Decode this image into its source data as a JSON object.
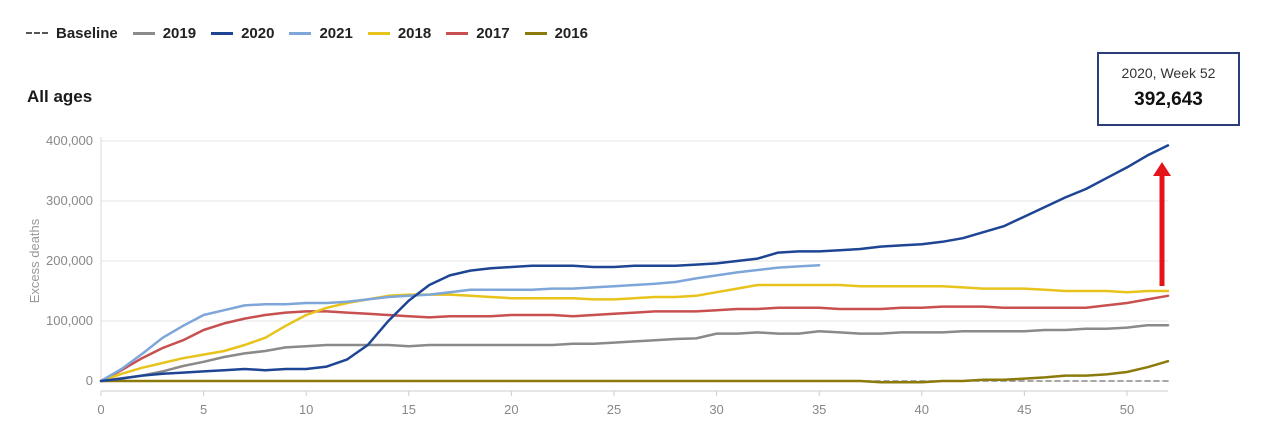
{
  "legend": [
    {
      "label": "Baseline",
      "color": "#555555",
      "dashed": true
    },
    {
      "label": "2019",
      "color": "#8a8a8a",
      "dashed": false
    },
    {
      "label": "2020",
      "color": "#1d4593",
      "dashed": false
    },
    {
      "label": "2021",
      "color": "#7ea6d8",
      "dashed": false
    },
    {
      "label": "2018",
      "color": "#e8c31c",
      "dashed": false
    },
    {
      "label": "2017",
      "color": "#c85050",
      "dashed": false
    },
    {
      "label": "2016",
      "color": "#8c7a0c",
      "dashed": false
    }
  ],
  "subtitle": "All ages",
  "tooltip": {
    "heading": "2020, Week 52",
    "value": "392,643"
  },
  "annotation_color": "#e3151a",
  "chart_data": {
    "type": "line",
    "ylabel": "Excess deaths",
    "xlabel": "",
    "xlim": [
      0,
      52
    ],
    "ylim": [
      0,
      400000
    ],
    "x_ticks": [
      0,
      5,
      10,
      15,
      20,
      25,
      30,
      35,
      40,
      45,
      50
    ],
    "y_ticks": [
      0,
      100000,
      200000,
      300000,
      400000
    ],
    "y_tick_labels": [
      "0",
      "100,000",
      "200,000",
      "300,000",
      "400,000"
    ],
    "grid": true,
    "legend_position": "top-left",
    "series": [
      {
        "name": "Baseline",
        "color": "#888888",
        "dashed": true,
        "x": [
          0,
          52
        ],
        "y": [
          0,
          0
        ]
      },
      {
        "name": "2016",
        "color": "#8c7a0c",
        "x": [
          0,
          5,
          10,
          15,
          20,
          25,
          30,
          35,
          37,
          38,
          39,
          40,
          41,
          42,
          43,
          44,
          45,
          46,
          47,
          48,
          49,
          50,
          51,
          52
        ],
        "y": [
          0,
          0,
          0,
          0,
          0,
          0,
          0,
          0,
          0,
          -2000,
          -2000,
          -2000,
          0,
          0,
          2000,
          2000,
          4000,
          6000,
          9000,
          9000,
          11000,
          15000,
          23000,
          33000
        ]
      },
      {
        "name": "2019",
        "color": "#8a8a8a",
        "x": [
          0,
          2,
          3,
          4,
          5,
          6,
          7,
          8,
          9,
          10,
          11,
          12,
          13,
          14,
          15,
          16,
          17,
          18,
          19,
          20,
          21,
          22,
          23,
          24,
          25,
          26,
          27,
          28,
          29,
          30,
          31,
          32,
          33,
          34,
          35,
          36,
          37,
          38,
          39,
          40,
          41,
          42,
          43,
          44,
          45,
          46,
          47,
          48,
          49,
          50,
          51,
          52
        ],
        "y": [
          0,
          9000,
          16000,
          25000,
          32000,
          40000,
          46000,
          50000,
          56000,
          58000,
          60000,
          60000,
          60000,
          60000,
          58000,
          60000,
          60000,
          60000,
          60000,
          60000,
          60000,
          60000,
          62000,
          62000,
          64000,
          66000,
          68000,
          70000,
          71000,
          79000,
          79000,
          81000,
          79000,
          79000,
          83000,
          81000,
          79000,
          79000,
          81000,
          81000,
          81000,
          83000,
          83000,
          83000,
          83000,
          85000,
          85000,
          87000,
          87000,
          89000,
          93000,
          93000
        ]
      },
      {
        "name": "2017",
        "color": "#c85050",
        "x": [
          0,
          1,
          2,
          3,
          4,
          5,
          6,
          7,
          8,
          9,
          10,
          11,
          12,
          13,
          14,
          15,
          16,
          17,
          18,
          19,
          20,
          21,
          22,
          23,
          24,
          25,
          26,
          27,
          28,
          29,
          30,
          31,
          32,
          33,
          34,
          35,
          36,
          37,
          38,
          39,
          40,
          41,
          42,
          43,
          44,
          45,
          46,
          47,
          48,
          49,
          50,
          51,
          52
        ],
        "y": [
          0,
          18000,
          38000,
          55000,
          68000,
          85000,
          96000,
          104000,
          110000,
          114000,
          116000,
          116000,
          114000,
          112000,
          110000,
          108000,
          106000,
          108000,
          108000,
          108000,
          110000,
          110000,
          110000,
          108000,
          110000,
          112000,
          114000,
          116000,
          116000,
          116000,
          118000,
          120000,
          120000,
          122000,
          122000,
          122000,
          120000,
          120000,
          120000,
          122000,
          122000,
          124000,
          124000,
          124000,
          122000,
          122000,
          122000,
          122000,
          122000,
          126000,
          130000,
          136000,
          142000
        ]
      },
      {
        "name": "2018",
        "color": "#e8c31c",
        "x": [
          0,
          1,
          2,
          3,
          4,
          5,
          6,
          7,
          8,
          9,
          10,
          11,
          12,
          13,
          14,
          15,
          16,
          17,
          18,
          19,
          20,
          21,
          22,
          23,
          24,
          25,
          26,
          27,
          28,
          29,
          30,
          31,
          32,
          33,
          34,
          35,
          36,
          37,
          38,
          39,
          40,
          41,
          42,
          43,
          44,
          45,
          46,
          47,
          48,
          49,
          50,
          51,
          52
        ],
        "y": [
          0,
          12000,
          22000,
          30000,
          38000,
          44000,
          50000,
          60000,
          72000,
          92000,
          110000,
          122000,
          130000,
          136000,
          142000,
          144000,
          144000,
          144000,
          142000,
          140000,
          138000,
          138000,
          138000,
          138000,
          136000,
          136000,
          138000,
          140000,
          140000,
          142000,
          148000,
          154000,
          160000,
          160000,
          160000,
          160000,
          160000,
          158000,
          158000,
          158000,
          158000,
          158000,
          156000,
          154000,
          154000,
          154000,
          152000,
          150000,
          150000,
          150000,
          148000,
          150000,
          150000
        ]
      },
      {
        "name": "2021",
        "color": "#7ea6d8",
        "x": [
          0,
          1,
          2,
          3,
          4,
          5,
          6,
          7,
          8,
          9,
          10,
          11,
          12,
          13,
          14,
          15,
          16,
          17,
          18,
          19,
          20,
          21,
          22,
          23,
          24,
          25,
          26,
          27,
          28,
          29,
          30,
          31,
          32,
          33,
          34,
          35
        ],
        "y": [
          0,
          20000,
          45000,
          72000,
          92000,
          110000,
          118000,
          126000,
          128000,
          128000,
          130000,
          130000,
          132000,
          136000,
          140000,
          142000,
          144000,
          148000,
          152000,
          152000,
          152000,
          152000,
          154000,
          154000,
          156000,
          158000,
          160000,
          162000,
          165000,
          171000,
          176000,
          181000,
          185000,
          189000,
          191000,
          193000
        ]
      },
      {
        "name": "2020",
        "color": "#1d4593",
        "x": [
          0,
          1,
          2,
          3,
          4,
          5,
          6,
          7,
          8,
          9,
          10,
          11,
          12,
          13,
          14,
          15,
          16,
          17,
          18,
          19,
          20,
          21,
          22,
          23,
          24,
          25,
          26,
          27,
          28,
          29,
          30,
          31,
          32,
          33,
          34,
          35,
          36,
          37,
          38,
          39,
          40,
          41,
          42,
          43,
          44,
          45,
          46,
          47,
          48,
          49,
          50,
          51,
          52
        ],
        "y": [
          0,
          4000,
          9000,
          12000,
          14000,
          16000,
          18000,
          20000,
          18000,
          20000,
          20000,
          24000,
          36000,
          60000,
          100000,
          134000,
          160000,
          176000,
          184000,
          188000,
          190000,
          192000,
          192000,
          192000,
          190000,
          190000,
          192000,
          192000,
          192000,
          194000,
          196000,
          200000,
          204000,
          214000,
          216000,
          216000,
          218000,
          220000,
          224000,
          226000,
          228000,
          232000,
          238000,
          248000,
          258000,
          274000,
          290000,
          306000,
          320000,
          338000,
          356000,
          376000,
          392643
        ]
      }
    ]
  }
}
